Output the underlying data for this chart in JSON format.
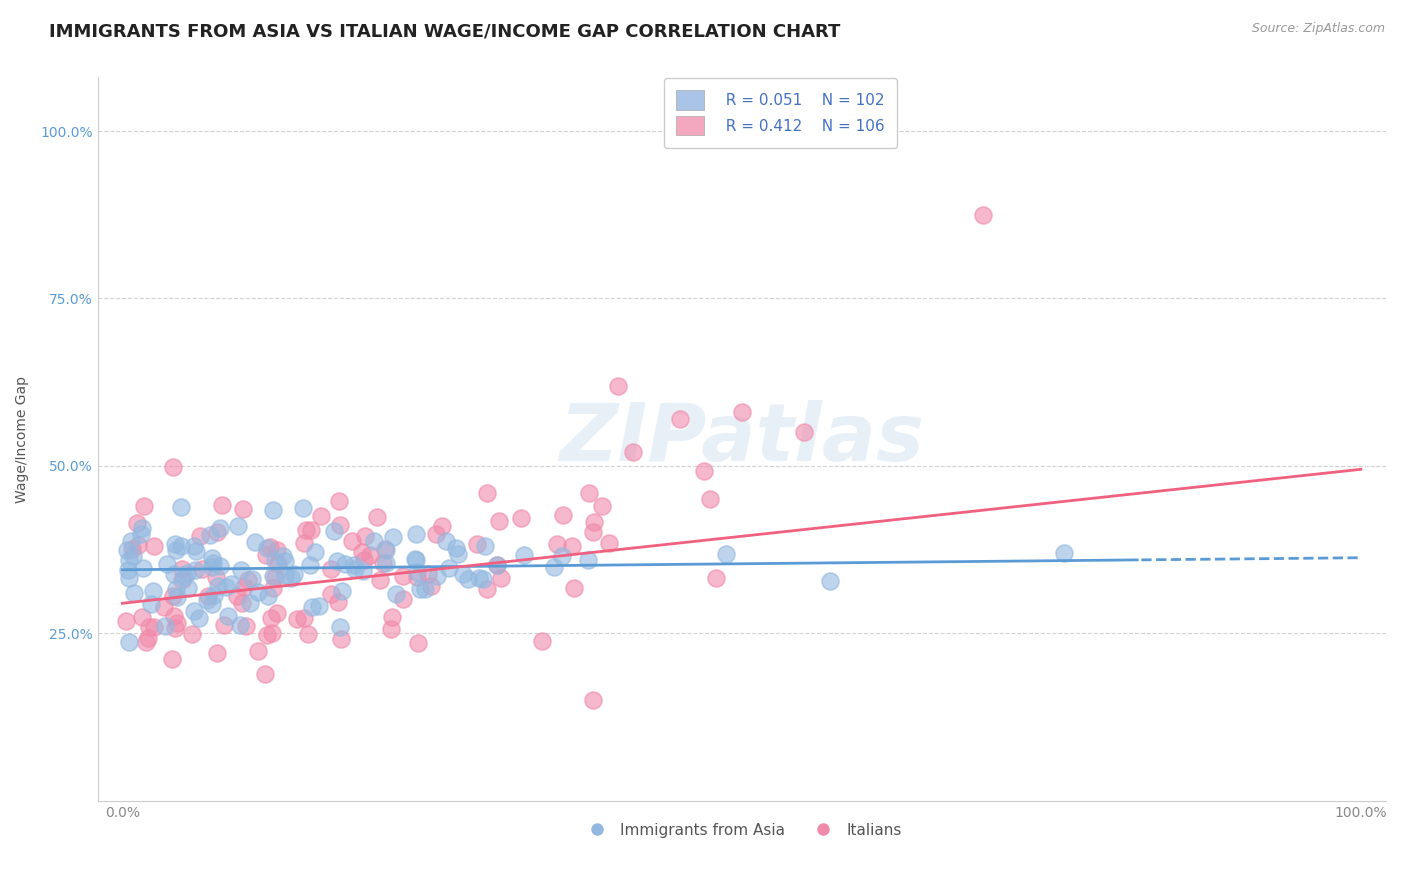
{
  "title": "IMMIGRANTS FROM ASIA VS ITALIAN WAGE/INCOME GAP CORRELATION CHART",
  "source": "Source: ZipAtlas.com",
  "ylabel": "Wage/Income Gap",
  "legend_entries": [
    {
      "label": "Immigrants from Asia",
      "R": "0.051",
      "N": "102",
      "color": "#aac4e8"
    },
    {
      "label": "Italians",
      "R": "0.412",
      "N": "106",
      "color": "#f4a8c0"
    }
  ],
  "watermark_text": "ZIPatlas",
  "blue_scatter_color": "#92b8e0",
  "pink_scatter_color": "#f08aaa",
  "blue_line_color": "#5b9bd5",
  "pink_line_color": "#f06080",
  "legend_R_color": "#4472c4",
  "legend_patch_blue": "#aac4e8",
  "legend_patch_pink": "#f4a8c0",
  "background": "#ffffff",
  "grid_color": "#cccccc",
  "title_color": "#222222",
  "title_fontsize": 13,
  "axis_label_fontsize": 10,
  "legend_fontsize": 11,
  "ytick_color": "#5b9bd5",
  "xtick_color": "#888888",
  "seed": 7
}
